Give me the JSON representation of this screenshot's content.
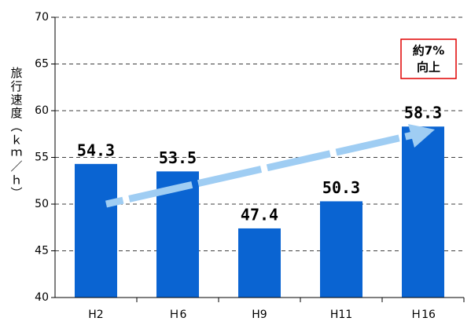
{
  "chart_data": {
    "type": "bar",
    "y_label": "旅行速度（ｋｍ／ｈ）",
    "categories": [
      "H2",
      "Ｈ6",
      "H9",
      "H11",
      "Ｈ16"
    ],
    "values": [
      54.3,
      53.5,
      47.4,
      50.3,
      58.3
    ],
    "color": "#0a64d2",
    "ylim": [
      40,
      70
    ],
    "yticks": [
      40,
      45,
      50,
      55,
      60,
      65,
      70
    ],
    "grid": true,
    "annotation": [
      "約7%",
      "向上"
    ]
  }
}
